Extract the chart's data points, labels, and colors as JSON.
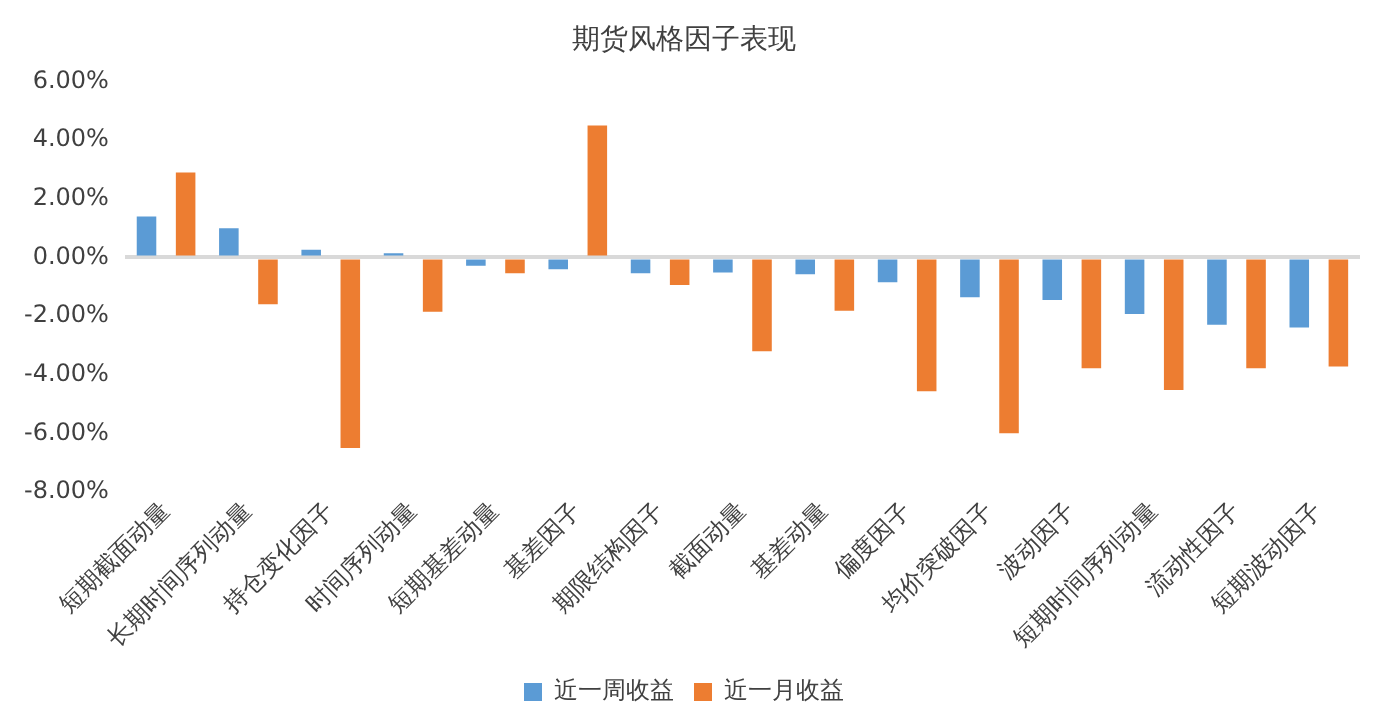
{
  "chart_data": {
    "type": "bar",
    "title": "期货风格因子表现",
    "categories": [
      "短期截面动量",
      "长期时间序列动量",
      "持仓变化因子",
      "时间序列动量",
      "短期基差动量",
      "基差因子",
      "期限结构因子",
      "截面动量",
      "基差动量",
      "偏度因子",
      "均价突破因子",
      "波动因子",
      "短期时间序列动量",
      "流动性因子",
      "短期波动因子"
    ],
    "series": [
      {
        "name": "近一周收益",
        "color": "#5b9bd5",
        "values": [
          1.4,
          1.0,
          0.26,
          0.14,
          -0.28,
          -0.4,
          -0.54,
          -0.51,
          -0.57,
          -0.85,
          -1.36,
          -1.45,
          -1.93,
          -2.3,
          -2.39
        ]
      },
      {
        "name": "近一月收益",
        "color": "#ed7d31",
        "values": [
          2.9,
          -1.6,
          -6.5,
          -1.85,
          -0.54,
          4.5,
          -0.94,
          -3.2,
          -1.82,
          -4.57,
          -6.0,
          -3.78,
          -4.52,
          -3.78,
          -3.72
        ]
      }
    ],
    "ylim": [
      -8,
      6
    ],
    "yticks": [
      {
        "value": -8,
        "label": "-8.00%"
      },
      {
        "value": -6,
        "label": "-6.00%"
      },
      {
        "value": -4,
        "label": "-4.00%"
      },
      {
        "value": -2,
        "label": "-2.00%"
      },
      {
        "value": 0,
        "label": "0.00%"
      },
      {
        "value": 2,
        "label": "2.00%"
      },
      {
        "value": 4,
        "label": "4.00%"
      },
      {
        "value": 6,
        "label": "6.00%"
      }
    ],
    "legend": "bottom"
  }
}
